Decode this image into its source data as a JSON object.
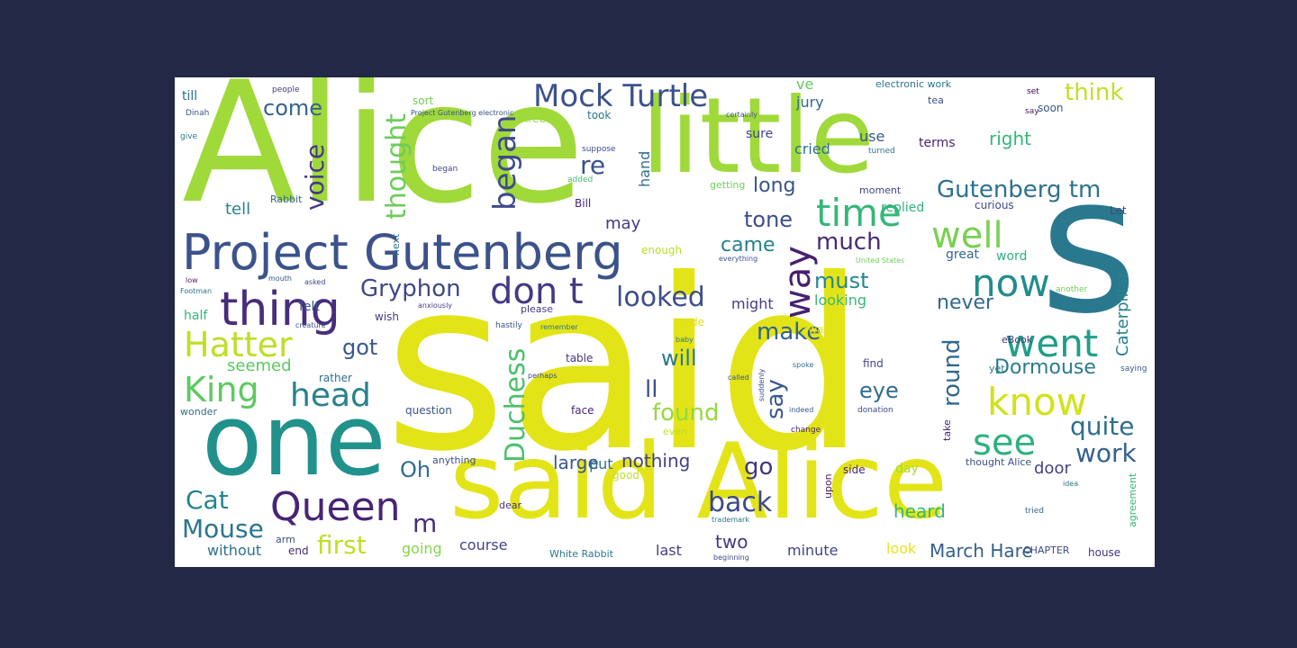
{
  "palette": {
    "background": "#222845",
    "canvas": "#ffffff",
    "yellow": "#e3e418",
    "lime": "#a0d93a",
    "green": "#5ec962",
    "teal": "#21918c",
    "blue": "#31688e",
    "indigo": "#3b528b",
    "purple": "#472d7b",
    "aqua": "#35b779"
  },
  "words": [
    {
      "text": "Alice",
      "color": "#a0d93a"
    },
    {
      "text": "little",
      "color": "#a0d93a"
    },
    {
      "text": "s",
      "color": "#2a788e"
    },
    {
      "text": "said",
      "color": "#e3e418"
    },
    {
      "text": "said Alice",
      "color": "#e3e418"
    },
    {
      "text": "one",
      "color": "#21918c"
    },
    {
      "text": "Project Gutenberg",
      "color": "#3b528b"
    },
    {
      "text": "thing",
      "color": "#472d7b"
    },
    {
      "text": "Hatter",
      "color": "#bddf26"
    },
    {
      "text": "King",
      "color": "#5ec962"
    },
    {
      "text": "head",
      "color": "#26828e"
    },
    {
      "text": "Queen",
      "color": "#482475"
    },
    {
      "text": "Mock Turtle",
      "color": "#3b528b"
    },
    {
      "text": "began",
      "color": "#3e4a89"
    },
    {
      "text": "don t",
      "color": "#443983"
    },
    {
      "text": "time",
      "color": "#35b779"
    },
    {
      "text": "well",
      "color": "#7ad151"
    },
    {
      "text": "now",
      "color": "#228c8d"
    },
    {
      "text": "went",
      "color": "#1f9e89"
    },
    {
      "text": "know",
      "color": "#d2e21b"
    },
    {
      "text": "see",
      "color": "#2db27d"
    },
    {
      "text": "Gutenberg tm",
      "color": "#2c728e"
    },
    {
      "text": "think",
      "color": "#c2df23"
    },
    {
      "text": "Gryphon",
      "color": "#3f4889"
    },
    {
      "text": "Duchess",
      "color": "#4ac16d"
    },
    {
      "text": "Dormouse",
      "color": "#287c8e"
    },
    {
      "text": "way",
      "color": "#481f70"
    },
    {
      "text": "looked",
      "color": "#3d4e8a"
    },
    {
      "text": "voice",
      "color": "#443a83"
    },
    {
      "text": "thought",
      "color": "#6ccd5a"
    },
    {
      "text": "come",
      "color": "#33638d"
    },
    {
      "text": "Cat",
      "color": "#25858e"
    },
    {
      "text": "Mouse",
      "color": "#2a768e"
    },
    {
      "text": "first",
      "color": "#bddf26"
    },
    {
      "text": "back",
      "color": "#3e4989"
    },
    {
      "text": "much",
      "color": "#482979"
    },
    {
      "text": "round",
      "color": "#31688e"
    },
    {
      "text": "quite",
      "color": "#2e6f8e"
    },
    {
      "text": "work",
      "color": "#34618d"
    },
    {
      "text": "re",
      "color": "#3b518b"
    },
    {
      "text": "got",
      "color": "#38588c"
    },
    {
      "text": "Oh",
      "color": "#2e6e8e"
    },
    {
      "text": "make",
      "color": "#33628d"
    },
    {
      "text": "go",
      "color": "#453581"
    },
    {
      "text": "found",
      "color": "#95d840"
    },
    {
      "text": "eye",
      "color": "#2f6c8e"
    },
    {
      "text": "say",
      "color": "#38598c"
    },
    {
      "text": "m",
      "color": "#472c7a"
    },
    {
      "text": "ll",
      "color": "#3c4f8a"
    },
    {
      "text": "will",
      "color": "#2a788e"
    },
    {
      "text": "long",
      "color": "#3b528b"
    },
    {
      "text": "tone",
      "color": "#3d4d8a"
    },
    {
      "text": "came",
      "color": "#26818e"
    },
    {
      "text": "must",
      "color": "#24868e"
    },
    {
      "text": "never",
      "color": "#30698e"
    },
    {
      "text": "Caterpillar",
      "color": "#26828e"
    },
    {
      "text": "two",
      "color": "#443a83"
    },
    {
      "text": "right",
      "color": "#32b67a"
    },
    {
      "text": "March Hare",
      "color": "#34608d"
    },
    {
      "text": "nothing",
      "color": "#424186"
    },
    {
      "text": "large",
      "color": "#39568c"
    },
    {
      "text": "heard",
      "color": "#37b878"
    },
    {
      "text": "door",
      "color": "#414487"
    },
    {
      "text": "seemed",
      "color": "#5cc863"
    },
    {
      "text": "tell",
      "color": "#26828e"
    },
    {
      "text": "may",
      "color": "#453882"
    },
    {
      "text": "put",
      "color": "#2c718e"
    },
    {
      "text": "hand",
      "color": "#2d708e"
    },
    {
      "text": "sure",
      "color": "#404588"
    },
    {
      "text": "cried",
      "color": "#2c728e"
    },
    {
      "text": "use",
      "color": "#39568c"
    },
    {
      "text": "terms",
      "color": "#482475"
    },
    {
      "text": "jury",
      "color": "#31688e"
    },
    {
      "text": "ve",
      "color": "#5ec962"
    },
    {
      "text": "replied",
      "color": "#31b57b"
    },
    {
      "text": "looking",
      "color": "#37b878"
    },
    {
      "text": "might",
      "color": "#433e85"
    },
    {
      "text": "going",
      "color": "#86d549"
    },
    {
      "text": "course",
      "color": "#414487"
    },
    {
      "text": "minute",
      "color": "#414487"
    },
    {
      "text": "last",
      "color": "#433e85"
    },
    {
      "text": "look",
      "color": "#e5e419"
    },
    {
      "text": "without",
      "color": "#2c728e"
    },
    {
      "text": "end",
      "color": "#482878"
    },
    {
      "text": "house",
      "color": "#46327e"
    },
    {
      "text": "White Rabbit",
      "color": "#2a788e"
    },
    {
      "text": "CHAPTER",
      "color": "#3e4a89"
    },
    {
      "text": "half",
      "color": "#35b779"
    },
    {
      "text": "felt",
      "color": "#3a538b"
    },
    {
      "text": "Rabbit",
      "color": "#32658e"
    },
    {
      "text": "till",
      "color": "#2c728e"
    },
    {
      "text": "Dinah",
      "color": "#3b528b"
    },
    {
      "text": "people",
      "color": "#443983"
    },
    {
      "text": "electronic work",
      "color": "#2a778e"
    },
    {
      "text": "tea",
      "color": "#3e4989"
    },
    {
      "text": "soon",
      "color": "#38588c"
    },
    {
      "text": "took",
      "color": "#2a768e"
    },
    {
      "text": "three",
      "color": "#9bd93c"
    },
    {
      "text": "sort",
      "color": "#70cf57"
    },
    {
      "text": "table",
      "color": "#453781"
    },
    {
      "text": "question",
      "color": "#3b528b"
    },
    {
      "text": "face",
      "color": "#482677"
    },
    {
      "text": "find",
      "color": "#3e4989"
    },
    {
      "text": "side",
      "color": "#481f70"
    },
    {
      "text": "day",
      "color": "#a8db34"
    },
    {
      "text": "thought Alice",
      "color": "#3b528b"
    },
    {
      "text": "rather",
      "color": "#2d708e"
    },
    {
      "text": "anything",
      "color": "#3d4d8a"
    },
    {
      "text": "wonder",
      "color": "#2f6c8e"
    },
    {
      "text": "Bill",
      "color": "#482878"
    },
    {
      "text": "getting",
      "color": "#6ece58"
    },
    {
      "text": "enough",
      "color": "#b5de2b"
    },
    {
      "text": "moment",
      "color": "#414487"
    },
    {
      "text": "curious",
      "color": "#3e4a89"
    },
    {
      "text": "Let",
      "color": "#3f4788"
    },
    {
      "text": "eBook",
      "color": "#46337f"
    },
    {
      "text": "great",
      "color": "#31688e"
    },
    {
      "text": "word",
      "color": "#2db27d"
    },
    {
      "text": "made",
      "color": "#dde318"
    },
    {
      "text": "away",
      "color": "#e7e419"
    },
    {
      "text": "wish",
      "color": "#433e85"
    },
    {
      "text": "please",
      "color": "#433d84"
    },
    {
      "text": "next",
      "color": "#2d718e"
    },
    {
      "text": "give",
      "color": "#2a788e"
    },
    {
      "text": "set",
      "color": "#440154"
    },
    {
      "text": "say",
      "color": "#481668"
    },
    {
      "text": "good",
      "color": "#bfe021"
    },
    {
      "text": "even",
      "color": "#bddf26"
    },
    {
      "text": "dear",
      "color": "#463480"
    },
    {
      "text": "upon",
      "color": "#481467"
    },
    {
      "text": "added",
      "color": "#42be71"
    },
    {
      "text": "began",
      "color": "#404688"
    },
    {
      "text": "suppose",
      "color": "#3e4c8a"
    },
    {
      "text": "certainly",
      "color": "#3b528b"
    },
    {
      "text": "turned",
      "color": "#2b758e"
    },
    {
      "text": "saying",
      "color": "#38588c"
    },
    {
      "text": "another",
      "color": "#6ccd5a"
    },
    {
      "text": "agreement",
      "color": "#35b779"
    },
    {
      "text": "tried",
      "color": "#31688e"
    },
    {
      "text": "yet",
      "color": "#2a788e"
    },
    {
      "text": "take",
      "color": "#482677"
    },
    {
      "text": "idea",
      "color": "#2c728e"
    },
    {
      "text": "donation",
      "color": "#3e4a89"
    },
    {
      "text": "change",
      "color": "#482173"
    },
    {
      "text": "indeed",
      "color": "#3b528b"
    },
    {
      "text": "trademark",
      "color": "#2a788e"
    },
    {
      "text": "beginning",
      "color": "#3e4a89"
    },
    {
      "text": "arm",
      "color": "#3b528b"
    },
    {
      "text": "Footman",
      "color": "#2c728e"
    },
    {
      "text": "mouth",
      "color": "#3b528b"
    },
    {
      "text": "asked",
      "color": "#404688"
    },
    {
      "text": "low",
      "color": "#481f70"
    },
    {
      "text": "anxiously",
      "color": "#433e85"
    },
    {
      "text": "hastily",
      "color": "#3b528b"
    },
    {
      "text": "remember",
      "color": "#2c728e"
    },
    {
      "text": "creature",
      "color": "#3e4a89"
    },
    {
      "text": "United States",
      "color": "#6ccd5a"
    },
    {
      "text": "everything",
      "color": "#3b528b"
    },
    {
      "text": "baby",
      "color": "#2a788e"
    },
    {
      "text": "perhaps",
      "color": "#3e4a89"
    },
    {
      "text": "called",
      "color": "#3b528b"
    },
    {
      "text": "spoke",
      "color": "#2c728e"
    },
    {
      "text": "suddenly",
      "color": "#3e4a89"
    },
    {
      "text": "Project Gutenberg electronic",
      "color": "#3b528b"
    }
  ]
}
